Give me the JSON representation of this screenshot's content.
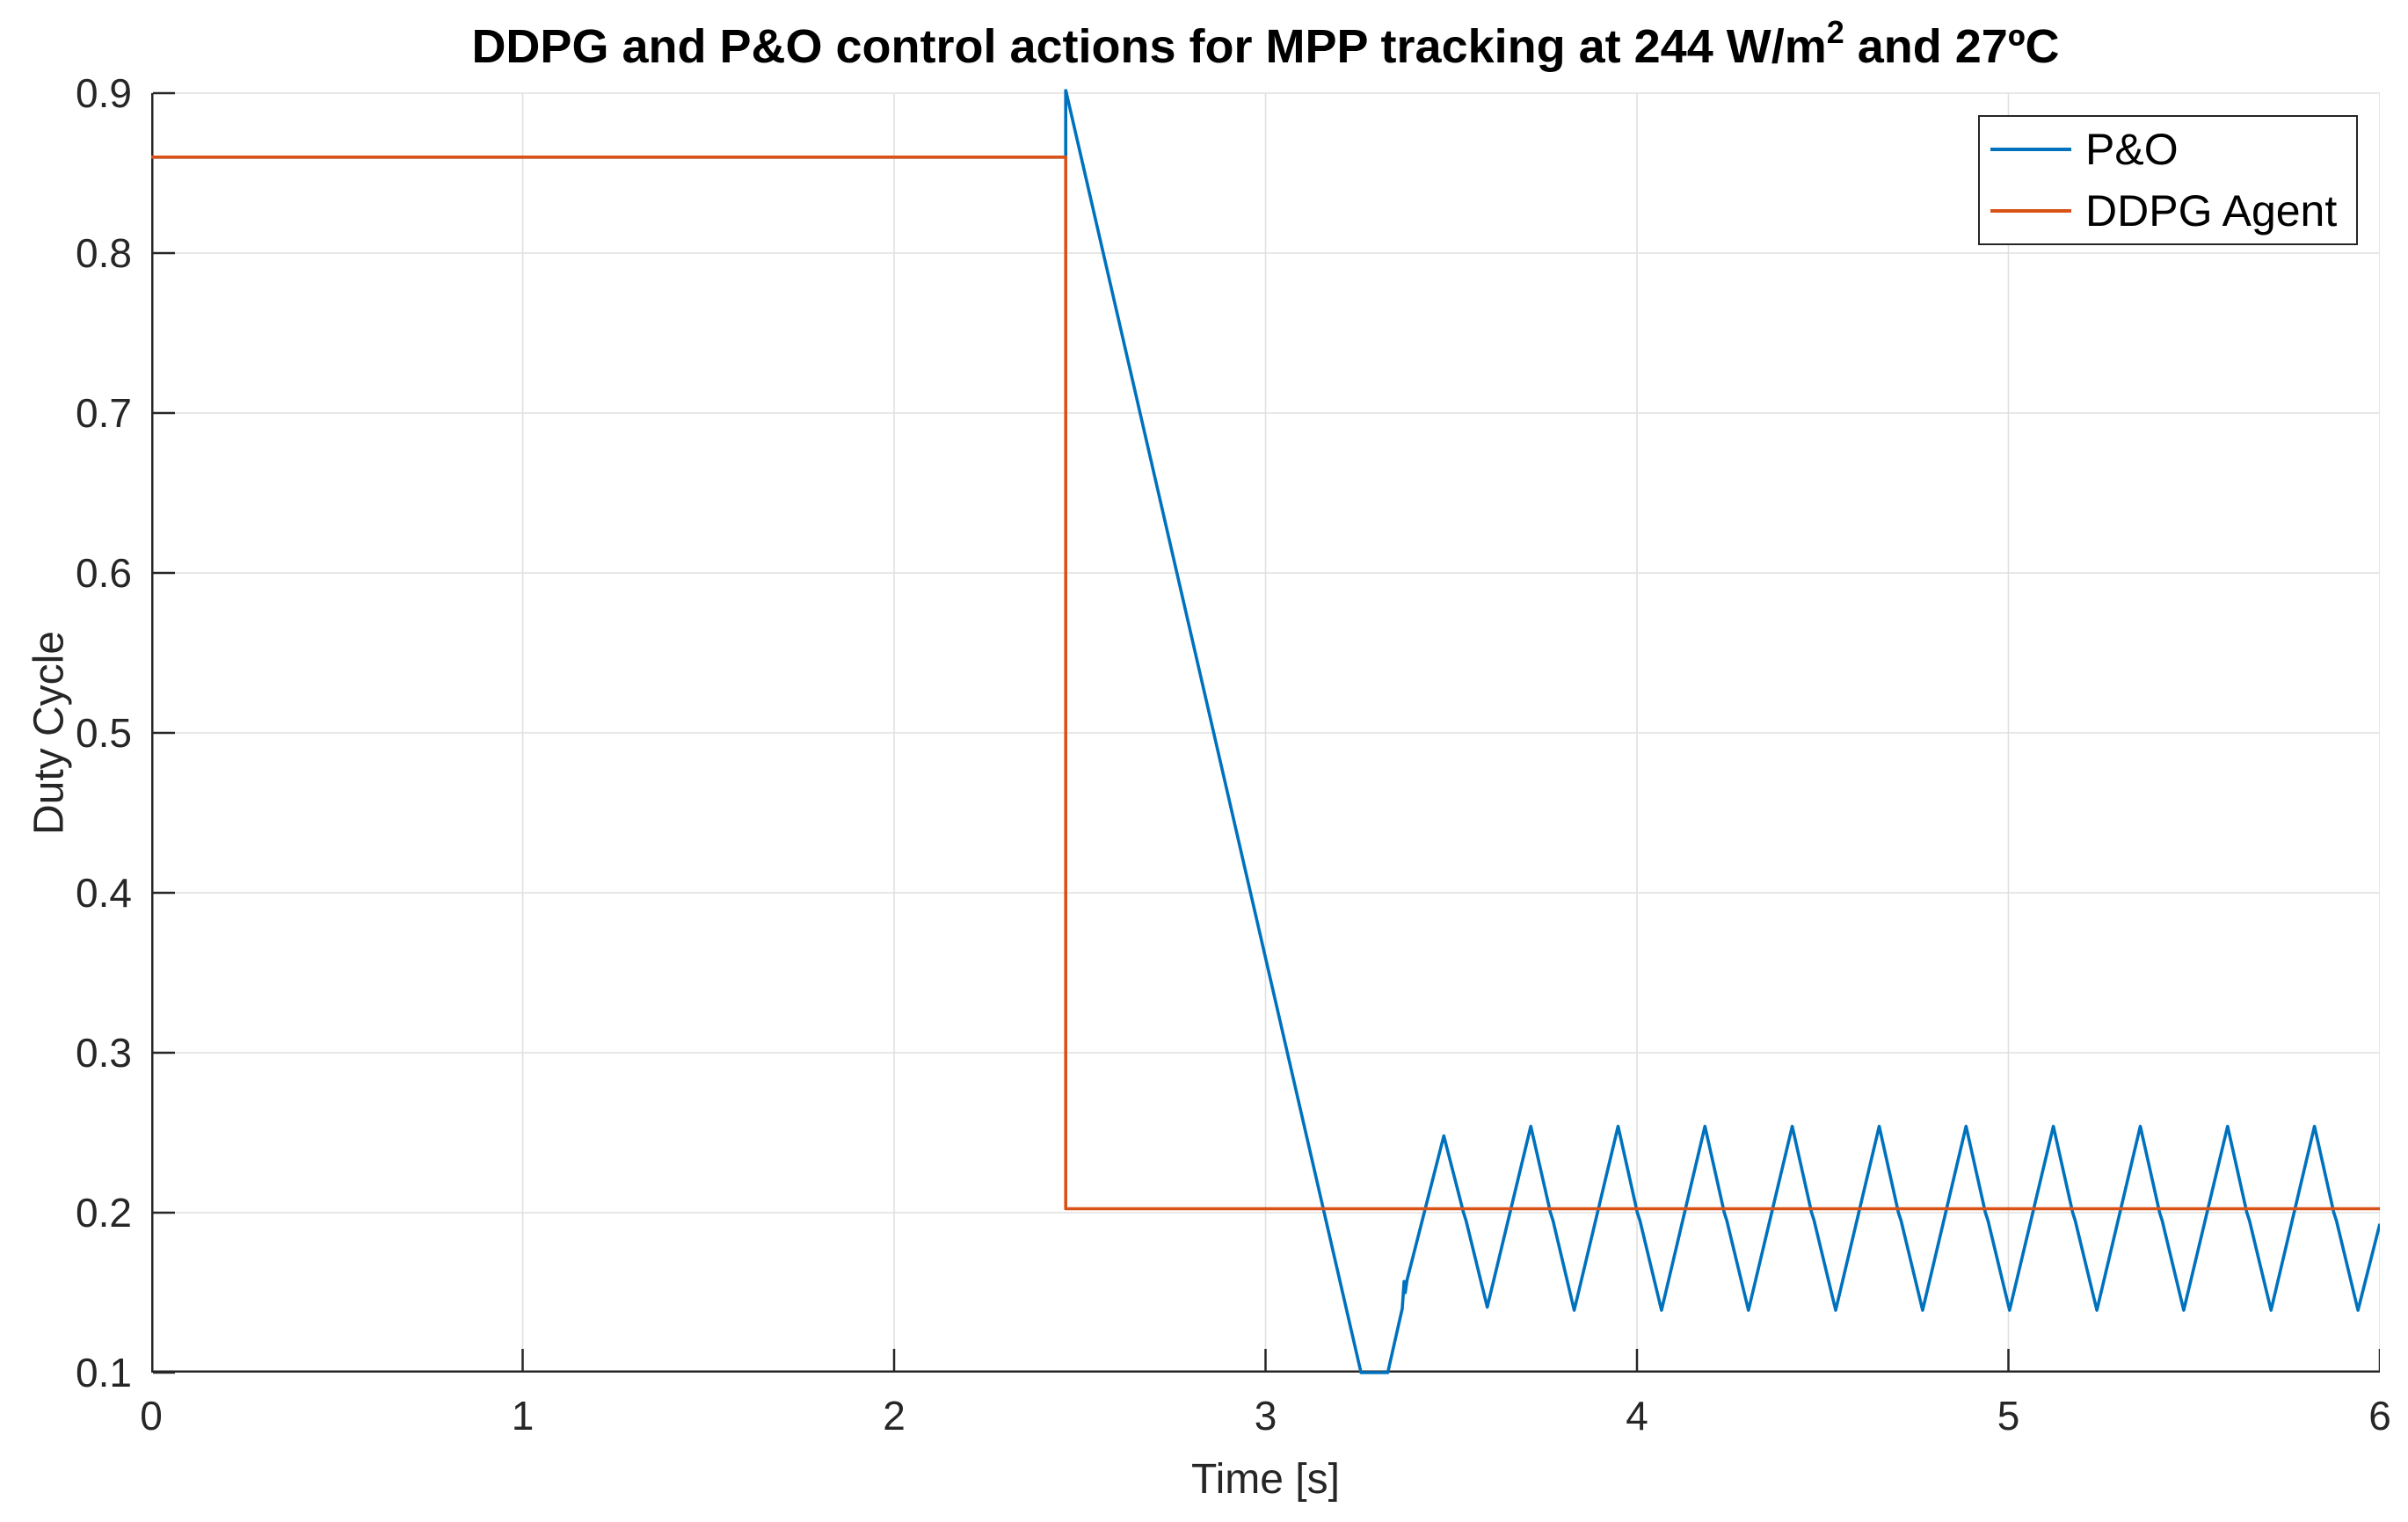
{
  "figure": {
    "background": "#ffffff",
    "title": {
      "prefix": "DDPG and P&O control actions for MPP tracking at 244 W/m",
      "superscript": "2",
      "suffix": " and 27ºC",
      "full": "DDPG and P&O control actions for MPP tracking at 244 W/m^2 and 27ºC"
    }
  },
  "chart_data": {
    "type": "line",
    "title": "DDPG and P&O control actions for MPP tracking at 244 W/m^2 and 27ºC",
    "xlabel": "Time [s]",
    "ylabel": "Duty Cycle",
    "xlim": [
      0,
      6
    ],
    "ylim": [
      0.1,
      0.9
    ],
    "xticks": {
      "values": [
        0,
        1,
        2,
        3,
        4,
        5,
        6
      ],
      "labels": [
        "0",
        "1",
        "2",
        "3",
        "4",
        "5",
        "6"
      ]
    },
    "yticks": {
      "values": [
        0.1,
        0.2,
        0.3,
        0.4,
        0.5,
        0.6,
        0.7,
        0.8,
        0.9
      ],
      "labels": [
        "0.1",
        "0.2",
        "0.3",
        "0.4",
        "0.5",
        "0.6",
        "0.7",
        "0.8",
        "0.9"
      ]
    },
    "grid": true,
    "axis_color": "#262626",
    "grid_color": "#e0e0e0",
    "legend": {
      "position": "top-right",
      "entries": [
        "P&O",
        "DDPG Agent"
      ]
    },
    "series": [
      {
        "name": "P&O",
        "color": "#0072BD",
        "points": [
          [
            0,
            0.86
          ],
          [
            2.462,
            0.86
          ],
          [
            2.462,
            0.902
          ],
          [
            3.257,
            0.1
          ],
          [
            3.329,
            0.1
          ],
          [
            3.368,
            0.14
          ],
          [
            3.373,
            0.157
          ],
          [
            3.376,
            0.15
          ],
          [
            3.381,
            0.158
          ],
          [
            3.48,
            0.248
          ],
          [
            3.533,
            0.2
          ],
          [
            3.54,
            0.195
          ],
          [
            3.597,
            0.141
          ],
          [
            3.714,
            0.254
          ],
          [
            3.767,
            0.2
          ],
          [
            3.774,
            0.195
          ],
          [
            3.831,
            0.139
          ],
          [
            3.949,
            0.254
          ],
          [
            4.001,
            0.2
          ],
          [
            4.008,
            0.195
          ],
          [
            4.066,
            0.139
          ],
          [
            4.183,
            0.254
          ],
          [
            4.235,
            0.2
          ],
          [
            4.242,
            0.195
          ],
          [
            4.3,
            0.139
          ],
          [
            4.418,
            0.254
          ],
          [
            4.47,
            0.2
          ],
          [
            4.477,
            0.195
          ],
          [
            4.535,
            0.139
          ],
          [
            4.652,
            0.254
          ],
          [
            4.704,
            0.2
          ],
          [
            4.711,
            0.195
          ],
          [
            4.769,
            0.139
          ],
          [
            4.886,
            0.254
          ],
          [
            4.938,
            0.2
          ],
          [
            4.945,
            0.195
          ],
          [
            5.003,
            0.139
          ],
          [
            5.121,
            0.254
          ],
          [
            5.173,
            0.2
          ],
          [
            5.18,
            0.195
          ],
          [
            5.238,
            0.139
          ],
          [
            5.355,
            0.254
          ],
          [
            5.407,
            0.2
          ],
          [
            5.414,
            0.195
          ],
          [
            5.472,
            0.139
          ],
          [
            5.59,
            0.254
          ],
          [
            5.642,
            0.2
          ],
          [
            5.649,
            0.195
          ],
          [
            5.707,
            0.139
          ],
          [
            5.824,
            0.254
          ],
          [
            5.876,
            0.2
          ],
          [
            5.883,
            0.195
          ],
          [
            5.941,
            0.139
          ],
          [
            6.0,
            0.193
          ]
        ]
      },
      {
        "name": "DDPG Agent",
        "color": "#D95319",
        "points": [
          [
            0,
            0.86
          ],
          [
            2.462,
            0.86
          ],
          [
            2.462,
            0.2025
          ],
          [
            6,
            0.2025
          ]
        ]
      }
    ]
  }
}
